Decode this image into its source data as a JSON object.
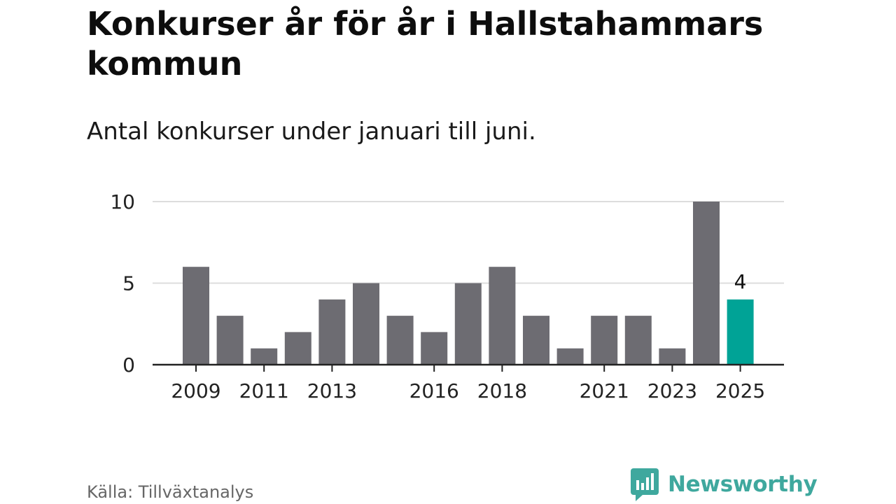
{
  "header": {
    "title": "Konkurser år för år i Hallstahammars kommun",
    "subtitle": "Antal konkurser under januari till juni."
  },
  "footer": {
    "source": "Källa: Tillväxtanalys",
    "brand": "Newsworthy",
    "brand_icon": "newsworthy-logo-icon"
  },
  "colors": {
    "bar": "#6d6c72",
    "highlight": "#00a396",
    "grid": "#dddddd",
    "axis": "#222222",
    "brand": "#3fa89e"
  },
  "chart_data": {
    "type": "bar",
    "categories": [
      "2009",
      "2010",
      "2011",
      "2012",
      "2013",
      "2014",
      "2015",
      "2016",
      "2017",
      "2018",
      "2019",
      "2020",
      "2021",
      "2022",
      "2023",
      "2024",
      "2025"
    ],
    "values": [
      6,
      3,
      1,
      2,
      4,
      5,
      3,
      2,
      5,
      6,
      3,
      1,
      3,
      3,
      1,
      10,
      4
    ],
    "x_tick_labels": [
      "2009",
      "2011",
      "2013",
      "2016",
      "2018",
      "2021",
      "2023",
      "2025"
    ],
    "y_ticks": [
      0,
      5,
      10
    ],
    "ylim": [
      0,
      10
    ],
    "highlight_category": "2025",
    "highlight_label": "4",
    "grid": true
  }
}
